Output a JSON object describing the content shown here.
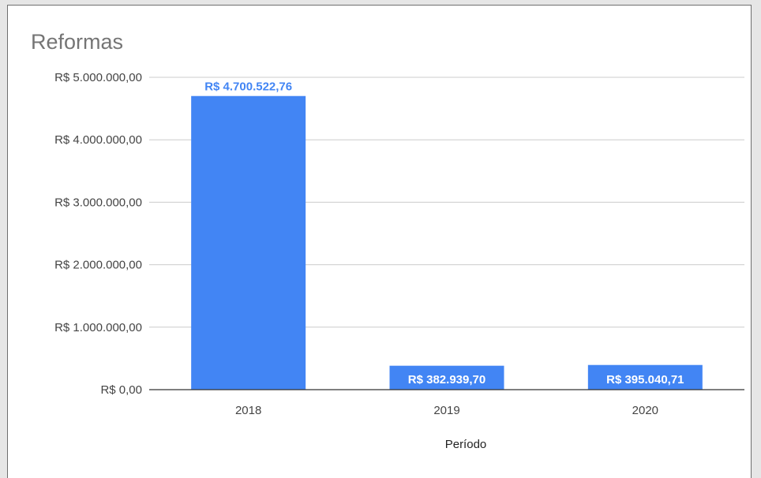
{
  "chart_data": {
    "type": "bar",
    "title": "Reformas",
    "xlabel": "Período",
    "ylabel": "",
    "categories": [
      "2018",
      "2019",
      "2020"
    ],
    "values": [
      4700522.76,
      382939.7,
      395040.71
    ],
    "data_labels": [
      "R$ 4.700.522,76",
      "R$ 382.939,70",
      "R$ 395.040,71"
    ],
    "y_ticks": [
      0,
      1000000,
      2000000,
      3000000,
      4000000,
      5000000
    ],
    "y_tick_labels": [
      "R$ 0,00",
      "R$ 1.000.000,00",
      "R$ 2.000.000,00",
      "R$ 3.000.000,00",
      "R$ 4.000.000,00",
      "R$ 5.000.000,00"
    ],
    "ylim": [
      0,
      5000000
    ],
    "grid": true,
    "legend": "none",
    "colors": {
      "bar": "#4285f4",
      "label_outside": "#4285f4",
      "label_inside_text": "#ffffff",
      "grid": "#cccccc",
      "baseline": "#333333"
    }
  }
}
